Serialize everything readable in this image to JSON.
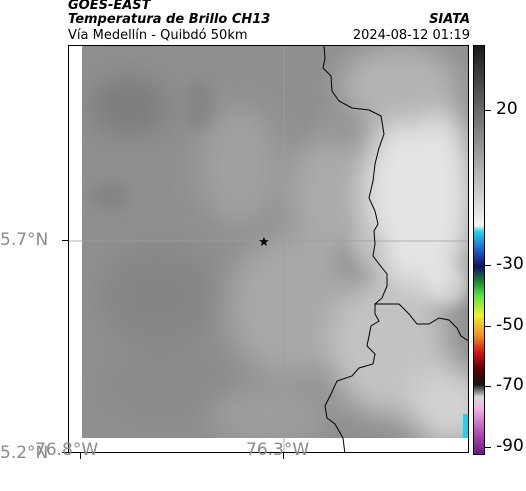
{
  "header": {
    "satellite": "GOES-EAST",
    "product": "Temperatura de Brillo CH13",
    "region": "Vía Medellín - Quibdó 50km",
    "agency": "SIATA",
    "timestamp": "2024-08-12 01:19"
  },
  "axes": {
    "y_ticks": [
      "5.7°N",
      "5.2°N"
    ],
    "x_ticks": [
      "76.8°W",
      "76.3°W"
    ]
  },
  "colorbar": {
    "ticks": [
      "20",
      "-30",
      "-50",
      "-70",
      "-90"
    ]
  },
  "marker": {
    "symbol": "★"
  },
  "colors": {
    "background_gray": "#8c8c8c",
    "bright_region": "#d8d8d8",
    "border_line": "#000000",
    "grid_line": "#9e9e9e"
  }
}
